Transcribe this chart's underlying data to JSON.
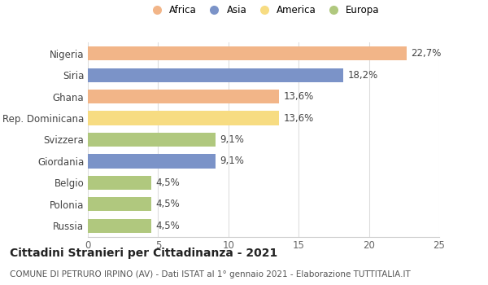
{
  "countries": [
    "Nigeria",
    "Siria",
    "Ghana",
    "Rep. Dominicana",
    "Svizzera",
    "Giordania",
    "Belgio",
    "Polonia",
    "Russia"
  ],
  "values": [
    22.7,
    18.2,
    13.6,
    13.6,
    9.1,
    9.1,
    4.5,
    4.5,
    4.5
  ],
  "labels": [
    "22,7%",
    "18,2%",
    "13,6%",
    "13,6%",
    "9,1%",
    "9,1%",
    "4,5%",
    "4,5%",
    "4,5%"
  ],
  "colors": [
    "#F2B588",
    "#7B93C8",
    "#F2B588",
    "#F7DC82",
    "#B0C87E",
    "#7B93C8",
    "#B0C87E",
    "#B0C87E",
    "#B0C87E"
  ],
  "continent_colors": {
    "Africa": "#F2B588",
    "Asia": "#7B93C8",
    "America": "#F7DC82",
    "Europa": "#B0C87E"
  },
  "legend_labels": [
    "Africa",
    "Asia",
    "America",
    "Europa"
  ],
  "xlim": [
    0,
    25
  ],
  "xticks": [
    0,
    5,
    10,
    15,
    20,
    25
  ],
  "title": "Cittadini Stranieri per Cittadinanza - 2021",
  "subtitle": "COMUNE DI PETRURO IRPINO (AV) - Dati ISTAT al 1° gennaio 2021 - Elaborazione TUTTITALIA.IT",
  "background_color": "#ffffff",
  "bar_height": 0.65,
  "label_fontsize": 8.5,
  "title_fontsize": 10,
  "subtitle_fontsize": 7.5,
  "ytick_fontsize": 8.5,
  "xtick_fontsize": 8.5,
  "legend_fontsize": 8.5
}
